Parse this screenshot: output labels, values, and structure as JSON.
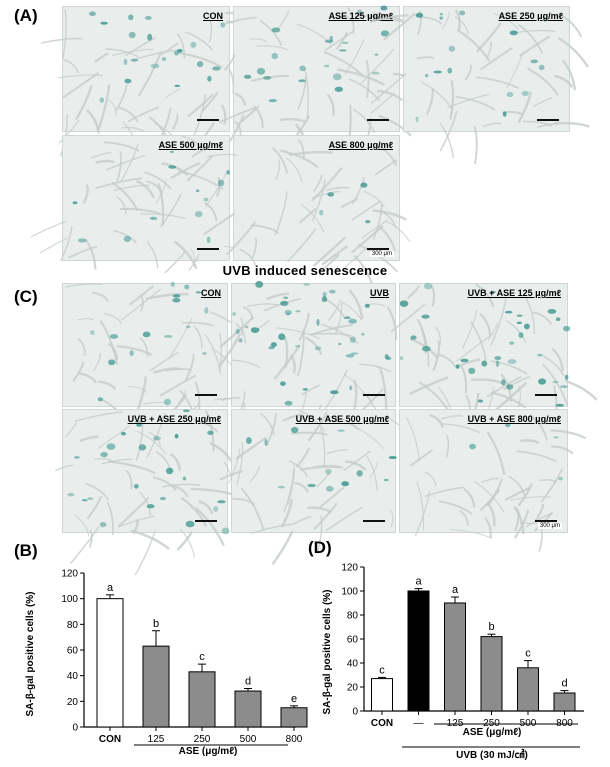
{
  "panel_a": {
    "letter": "(A)",
    "images": [
      {
        "label": "CON"
      },
      {
        "label": "ASE 125 μg/mℓ"
      },
      {
        "label": "ASE 250 μg/mℓ"
      },
      {
        "label": "ASE 500 μg/mℓ"
      },
      {
        "label": "ASE 800 μg/mℓ",
        "scale_text": "300 μm"
      }
    ]
  },
  "section_title": "UVB induced senescence",
  "panel_c": {
    "letter": "(C)",
    "images": [
      {
        "label": "CON"
      },
      {
        "label": "UVB"
      },
      {
        "label": "UVB + ASE 125 μg/mℓ"
      },
      {
        "label": "UVB + ASE 250 μg/mℓ"
      },
      {
        "label": "UVB + ASE 500 μg/mℓ"
      },
      {
        "label": "UVB + ASE 800 μg/mℓ",
        "scale_text": "300 μm"
      }
    ]
  },
  "panel_b": {
    "letter": "(B)"
  },
  "panel_d": {
    "letter": "(D)"
  },
  "colors": {
    "white_bar": "#ffffff",
    "black_bar": "#000000",
    "gray_bar": "#8c8c8c",
    "stain": "#2f8f86"
  },
  "chart_data": [
    {
      "type": "bar",
      "panel": "(B)",
      "categories": [
        "CON",
        "125",
        "250",
        "500",
        "800"
      ],
      "values": [
        100,
        63,
        43,
        28,
        15
      ],
      "errors": [
        3,
        12,
        6,
        2,
        1.5
      ],
      "letters": [
        "a",
        "b",
        "c",
        "d",
        "e"
      ],
      "bar_colors": [
        "white",
        "gray",
        "gray",
        "gray",
        "gray"
      ],
      "xlabel": "ASE (μg/mℓ)",
      "ylabel": "SA-β-gal positive cells (%)",
      "ylim": [
        0,
        120
      ],
      "yticks": [
        0,
        20,
        40,
        60,
        80,
        100,
        120
      ],
      "grid": false
    },
    {
      "type": "bar",
      "panel": "(D)",
      "categories": [
        "CON",
        "—",
        "125",
        "250",
        "500",
        "800"
      ],
      "values": [
        27,
        100,
        90,
        62,
        36,
        15
      ],
      "errors": [
        1,
        2,
        5,
        2,
        6,
        2
      ],
      "letters": [
        "c",
        "a",
        "a",
        "b",
        "c",
        "d"
      ],
      "bar_colors": [
        "white",
        "black",
        "gray",
        "gray",
        "gray",
        "gray"
      ],
      "xlabel": "ASE (μg/mℓ)",
      "xlabel2": "UVB (30 mJ/㎠)",
      "ylabel": "SA-β-gal positive cells (%)",
      "ylim": [
        0,
        120
      ],
      "yticks": [
        0,
        20,
        40,
        60,
        80,
        100,
        120
      ],
      "grid": false
    }
  ]
}
